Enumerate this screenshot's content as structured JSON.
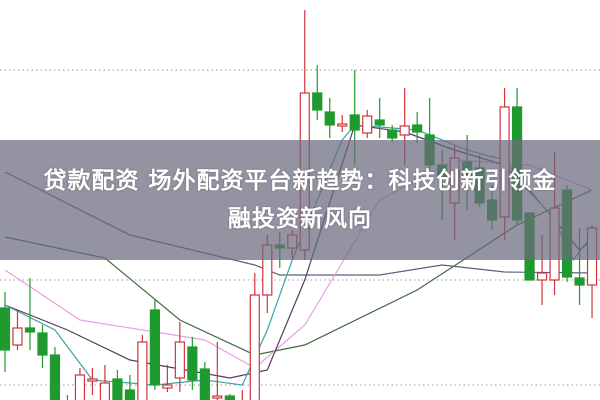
{
  "title": {
    "line1": "贷款配资 场外配资平台新趋势：科技创新引领金",
    "line2": "融投资新风向"
  },
  "chart_data": {
    "type": "candlestick",
    "title": "",
    "xlabel": "",
    "ylabel": "",
    "ylim": [
      0,
      40
    ],
    "grid": true,
    "gridlines": [
      33,
      12,
      1.5
    ],
    "colors": {
      "up": "#d0343a",
      "down": "#1e9a2e",
      "banner": "#69697d"
    },
    "candles": [
      [
        9.2,
        5.0,
        10.8,
        2.8
      ],
      [
        5.5,
        7.2,
        9.0,
        5.0
      ],
      [
        7.2,
        6.8,
        12.2,
        5.0
      ],
      [
        6.7,
        4.5,
        7.5,
        3.2
      ],
      [
        4.5,
        -0.5,
        5.3,
        -1
      ],
      [
        -0.3,
        -0.8,
        0.5,
        -1
      ],
      [
        -0.5,
        2.5,
        3.2,
        -1
      ],
      [
        1.9,
        2.1,
        3.2,
        0.5
      ],
      [
        -0.5,
        1.7,
        3.5,
        -1
      ],
      [
        2.1,
        -0.5,
        3.0,
        -1
      ],
      [
        1.0,
        -0.5,
        2.5,
        -1
      ],
      [
        -0.5,
        5.8,
        6.5,
        -1
      ],
      [
        9.0,
        1.5,
        10.0,
        1.0
      ],
      [
        1.2,
        1.5,
        3.5,
        0.8
      ],
      [
        2.2,
        5.8,
        7.8,
        0.8
      ],
      [
        5.3,
        2.0,
        6.3,
        1.0
      ],
      [
        3.1,
        -0.5,
        3.8,
        -1
      ],
      [
        0.2,
        0.4,
        5.8,
        -0.5
      ],
      [
        0.4,
        -0.5,
        0.6,
        -1
      ],
      [
        -0.8,
        -0.3,
        1.0,
        -1
      ],
      [
        -0.5,
        10.5,
        12.7,
        -1
      ],
      [
        10.5,
        15.5,
        16.5,
        8.7
      ],
      [
        15.5,
        15.2,
        16.8,
        13.2
      ],
      [
        15.2,
        16.5,
        17.0,
        14.2
      ],
      [
        15.0,
        30.7,
        39.0,
        14.0
      ],
      [
        30.7,
        29.0,
        33.5,
        28.0
      ],
      [
        28.8,
        27.5,
        30.2,
        26.2
      ],
      [
        27.4,
        27.6,
        28.5,
        26.8
      ],
      [
        28.5,
        27.0,
        33.0,
        23.5
      ],
      [
        26.7,
        28.4,
        29.0,
        26.2
      ],
      [
        28.0,
        27.5,
        30.2,
        26.2
      ],
      [
        27.0,
        26.2,
        27.5,
        25.8
      ],
      [
        26.5,
        27.4,
        31.2,
        23.5
      ],
      [
        27.5,
        26.8,
        28.8,
        25.7
      ],
      [
        26.5,
        23.5,
        30.2,
        23.0
      ],
      [
        23.5,
        22.2,
        25.0,
        18.0
      ],
      [
        19.7,
        24.2,
        25.5,
        16.0
      ],
      [
        23.8,
        22.5,
        26.5,
        19.0
      ],
      [
        23.2,
        19.7,
        24.5,
        19.3
      ],
      [
        20.0,
        18.0,
        21.5,
        17.0
      ],
      [
        18.3,
        29.3,
        31.2,
        16.0
      ],
      [
        29.3,
        18.0,
        31.2,
        17.5
      ],
      [
        18.7,
        12.0,
        18.7,
        12.0
      ],
      [
        12.0,
        12.7,
        16.5,
        9.5
      ],
      [
        12.0,
        19.2,
        24.8,
        10.5
      ],
      [
        21.0,
        12.3,
        21.5,
        11.8
      ],
      [
        12.2,
        11.5,
        17.2,
        9.5
      ],
      [
        11.5,
        17.2,
        17.5,
        8.2
      ]
    ],
    "candle_fields": [
      "open",
      "close",
      "high",
      "low"
    ],
    "moving_averages": [
      {
        "color": "#566478",
        "points": [
          [
            0,
            22.8
          ],
          [
            10,
            16.5
          ],
          [
            20,
            13.5
          ],
          [
            22,
            12.5
          ],
          [
            30,
            12.5
          ],
          [
            35,
            13.5
          ],
          [
            40,
            12.8
          ],
          [
            47,
            12.7
          ]
        ]
      },
      {
        "color": "#3f6a3f",
        "points": [
          [
            0,
            16.3
          ],
          [
            8,
            14.2
          ],
          [
            14,
            8.0
          ],
          [
            20,
            4.5
          ],
          [
            24,
            5.5
          ],
          [
            33,
            11.0
          ],
          [
            41,
            17.5
          ],
          [
            47,
            21.0
          ]
        ]
      },
      {
        "color": "#e6a2e2",
        "points": [
          [
            0,
            13.0
          ],
          [
            6,
            8.0
          ],
          [
            16,
            6.0
          ],
          [
            20,
            3.2
          ],
          [
            24,
            7.5
          ],
          [
            30,
            20.0
          ],
          [
            36,
            24.0
          ],
          [
            42,
            23.5
          ],
          [
            47,
            21.0
          ]
        ]
      },
      {
        "color": "#5a3a62",
        "points": [
          [
            0,
            9.5
          ],
          [
            5,
            7.0
          ],
          [
            10,
            4.0
          ],
          [
            18,
            2.2
          ],
          [
            21,
            3.0
          ],
          [
            24,
            12.0
          ],
          [
            28,
            27.5
          ],
          [
            32,
            26.8
          ],
          [
            36,
            25.0
          ],
          [
            40,
            23.5
          ],
          [
            43,
            19.5
          ],
          [
            46,
            15.0
          ],
          [
            47,
            16.0
          ]
        ]
      },
      {
        "color": "#3aa5a8",
        "points": [
          [
            0,
            9.5
          ],
          [
            4,
            7.0
          ],
          [
            7,
            2.0
          ],
          [
            12,
            1.5
          ],
          [
            16,
            2.0
          ],
          [
            19,
            1.5
          ],
          [
            21,
            7.0
          ],
          [
            23,
            14.0
          ],
          [
            27,
            26.0
          ],
          [
            28,
            27.5
          ],
          [
            33,
            27.0
          ],
          [
            37,
            25.0
          ],
          [
            40,
            24.0
          ],
          [
            42,
            21.0
          ],
          [
            44,
            18.0
          ],
          [
            45.5,
            14.0
          ],
          [
            47,
            16.5
          ]
        ]
      }
    ]
  }
}
